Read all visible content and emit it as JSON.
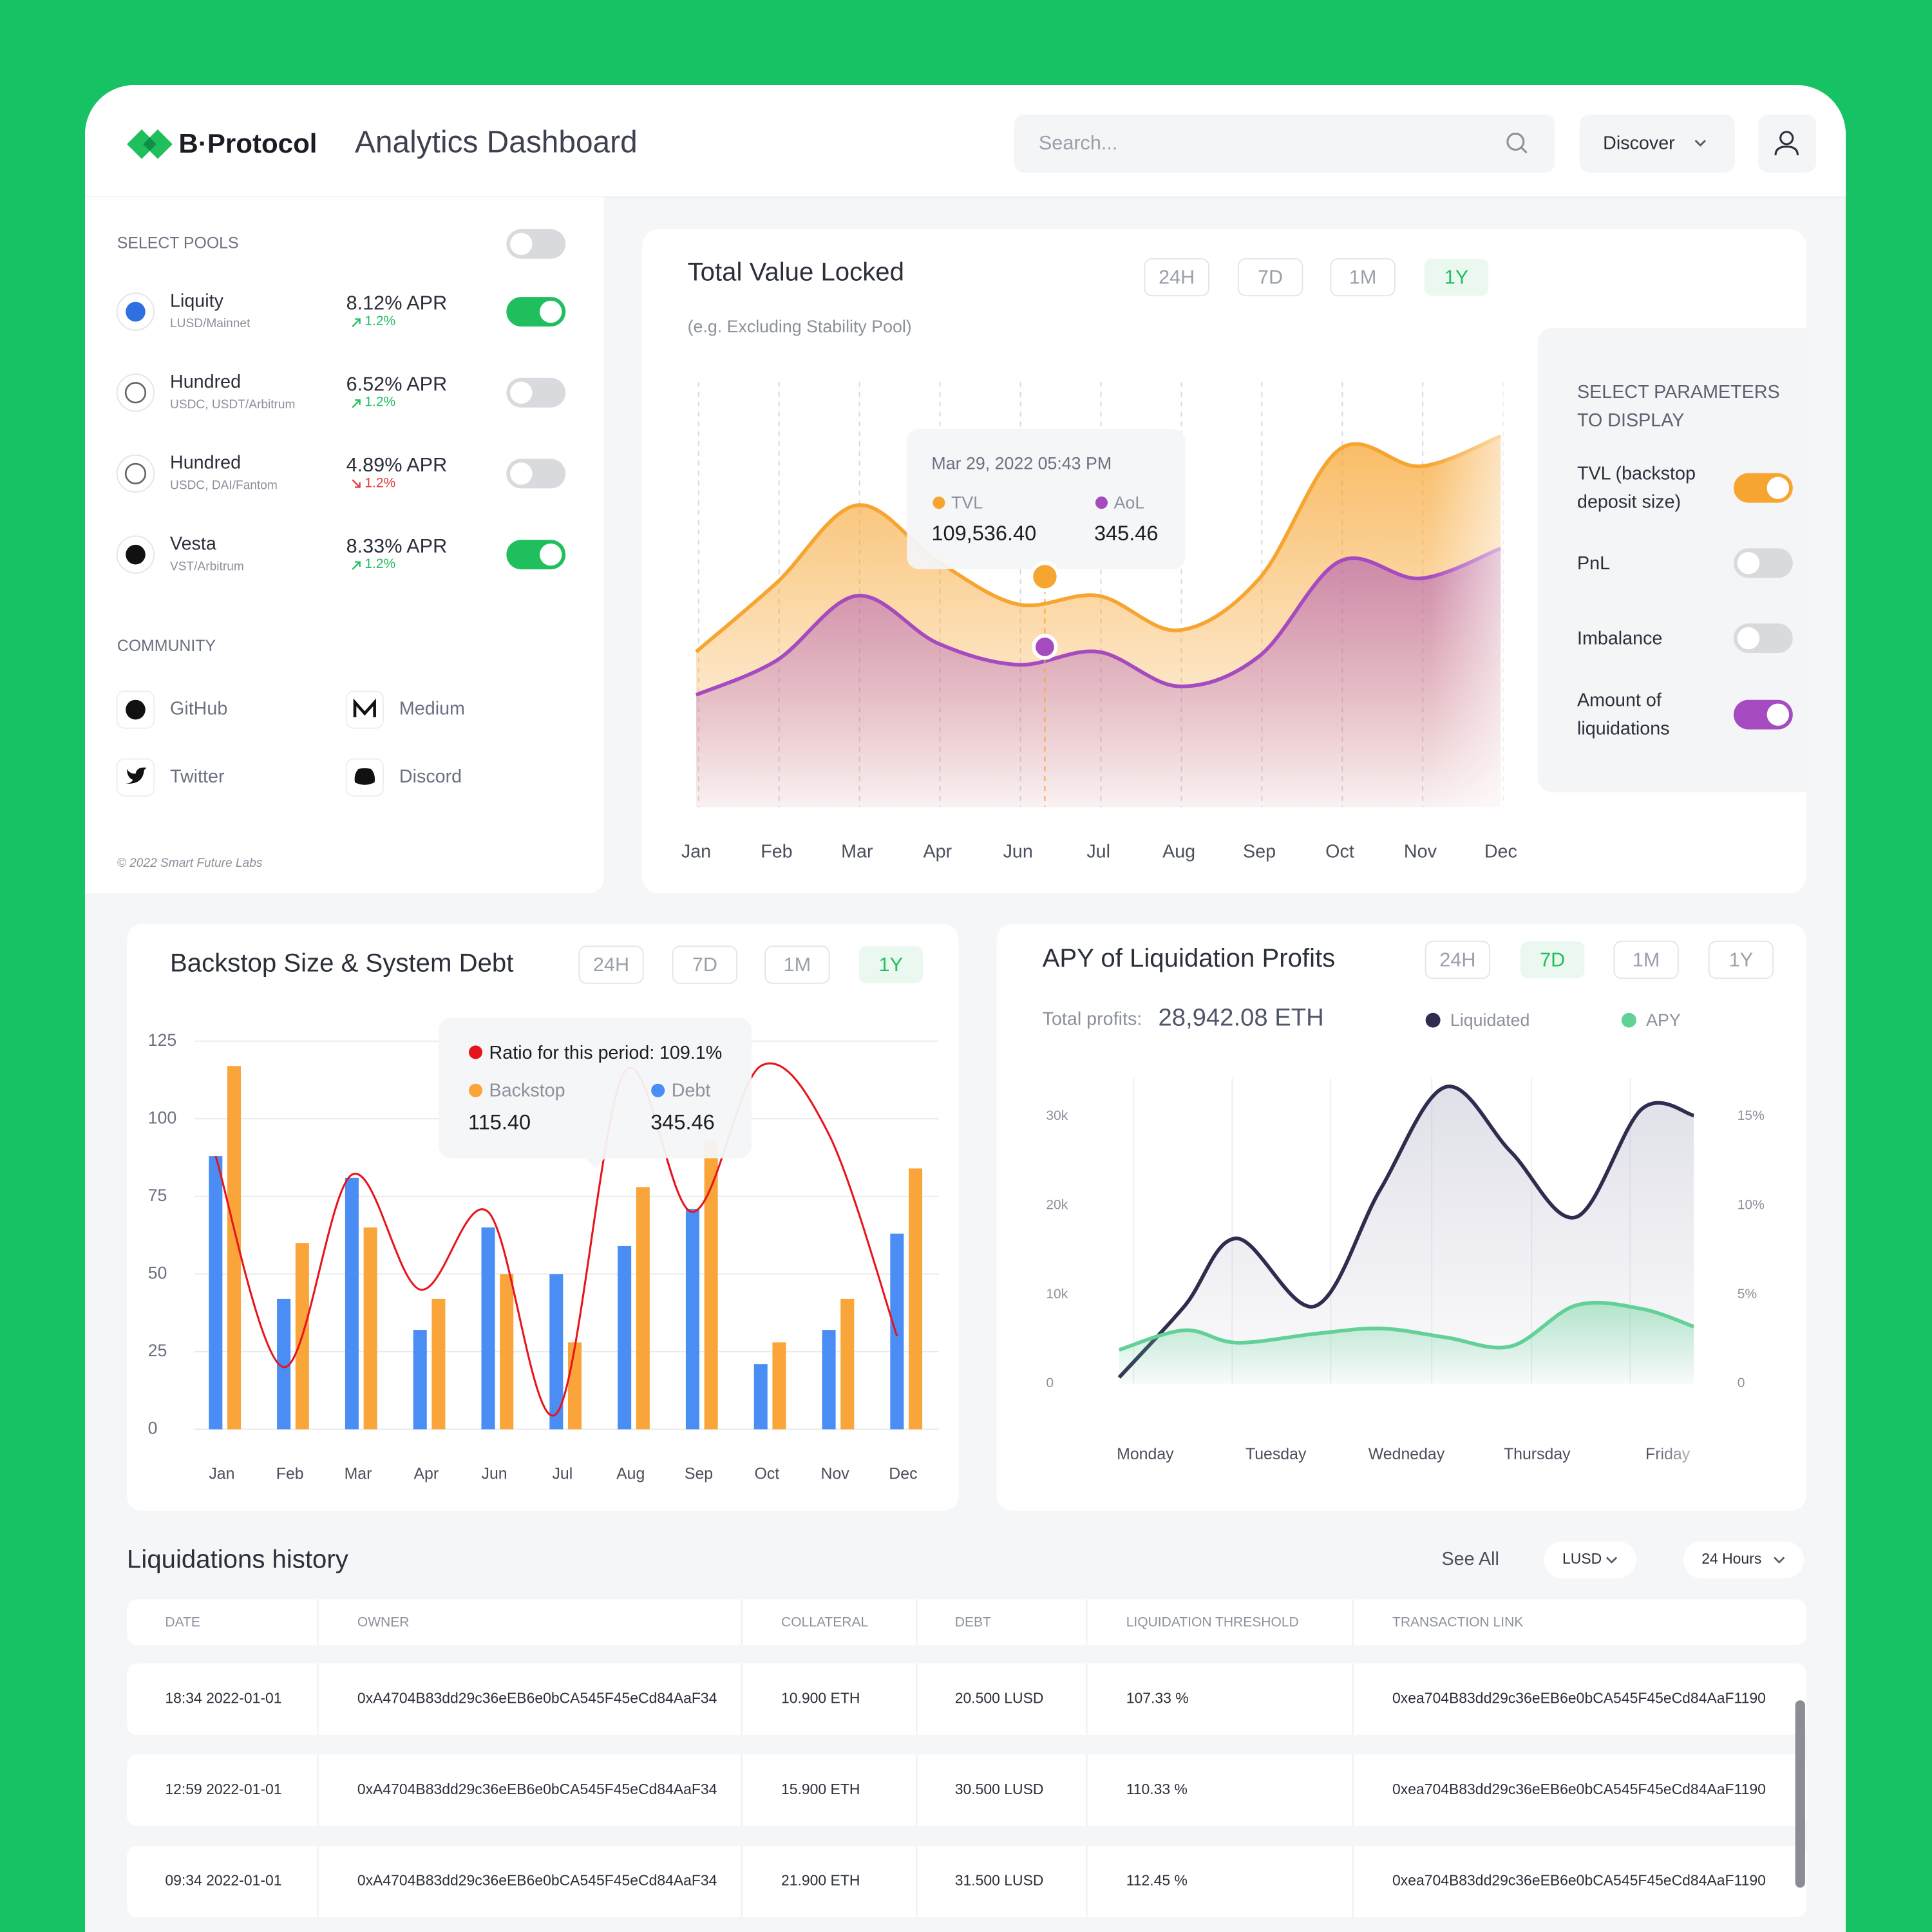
{
  "header": {
    "brand": "B·Protocol",
    "title": "Analytics Dashboard",
    "search_placeholder": "Search...",
    "menu": "Discover"
  },
  "sidebar": {
    "pools_heading": "SELECT POOLS",
    "all_enabled": false,
    "pools": [
      {
        "name": "Liquity",
        "network": "LUSD/Mainnet",
        "apr": "8.12% APR",
        "change": "1.2%",
        "trend": "up",
        "enabled": true
      },
      {
        "name": "Hundred",
        "network": "USDC, USDT/Arbitrum",
        "apr": "6.52% APR",
        "change": "1.2%",
        "trend": "up",
        "enabled": false
      },
      {
        "name": "Hundred",
        "network": "USDC, DAI/Fantom",
        "apr": "4.89% APR",
        "change": "1.2%",
        "trend": "down",
        "enabled": false
      },
      {
        "name": "Vesta",
        "network": "VST/Arbitrum",
        "apr": "8.33% APR",
        "change": "1.2%",
        "trend": "up",
        "enabled": true
      }
    ],
    "community_heading": "COMMUNITY",
    "links": [
      "GitHub",
      "Medium",
      "Twitter",
      "Discord"
    ],
    "footer": "© 2022 Smart Future Labs"
  },
  "tvl_chart": {
    "type": "area",
    "title": "Total Value Locked",
    "subtitle": "(e.g. Excluding Stability Pool)",
    "ranges": [
      "24H",
      "7D",
      "1M",
      "1Y"
    ],
    "active_range": 3,
    "categories": [
      "Jan",
      "Feb",
      "Mar",
      "Apr",
      "Jun",
      "Jul",
      "Aug",
      "Sep",
      "Oct",
      "Nov",
      "Dec"
    ],
    "series": [
      {
        "name": "TVL",
        "color": "#f7a531",
        "values": [
          36,
          52,
          70,
          57,
          47,
          49,
          41,
          53,
          83,
          79,
          86
        ]
      },
      {
        "name": "AoL",
        "color": "#a54bbf",
        "values": [
          26,
          34,
          49,
          38,
          33,
          36,
          28,
          35,
          57,
          53,
          60
        ]
      }
    ],
    "ylim": [
      0,
      100
    ],
    "tooltip": {
      "date": "Mar 29, 2022 05:43 PM",
      "values": [
        "109,536.40",
        "345.46"
      ]
    },
    "parameters": {
      "heading": "SELECT PARAMETERS TO DISPLAY",
      "items": [
        {
          "label": "TVL (backstop deposit size)",
          "enabled": true,
          "color": "#f7a531"
        },
        {
          "label": "PnL",
          "enabled": false,
          "color": "#d9dade"
        },
        {
          "label": "Imbalance",
          "enabled": false,
          "color": "#d9dade"
        },
        {
          "label": "Amount of liquidations",
          "enabled": true,
          "color": "#a54bbf"
        }
      ]
    }
  },
  "backstop_chart": {
    "type": "bar",
    "title": "Backstop Size & System Debt",
    "ranges": [
      "24H",
      "7D",
      "1M",
      "1Y"
    ],
    "active_range": 3,
    "categories": [
      "Jan",
      "Feb",
      "Mar",
      "Apr",
      "Jun",
      "Jul",
      "Aug",
      "Sep",
      "Oct",
      "Nov",
      "Dec"
    ],
    "series": [
      {
        "name": "Backstop",
        "color": "#f9a53a",
        "values": [
          117,
          60,
          65,
          42,
          50,
          28,
          78,
          93,
          28,
          42,
          84
        ]
      },
      {
        "name": "Debt",
        "color": "#4a8ef5",
        "values": [
          88,
          42,
          81,
          32,
          65,
          50,
          59,
          71,
          21,
          32,
          63
        ]
      }
    ],
    "ratio_line": {
      "color": "#e8141c",
      "values": [
        88,
        20,
        82,
        45,
        70,
        5,
        115,
        70,
        117,
        95,
        30
      ]
    },
    "ylim": [
      0,
      125
    ],
    "yticks": [
      0,
      25,
      50,
      75,
      100,
      125
    ],
    "grid": true,
    "tooltip": {
      "ratio_label": "Ratio for this period:",
      "ratio": "109.1%",
      "values": [
        "115.40",
        "345.46"
      ]
    }
  },
  "apy_chart": {
    "type": "line",
    "title": "APY of Liquidation Profits",
    "ranges": [
      "24H",
      "7D",
      "1M",
      "1Y"
    ],
    "active_range": 1,
    "total_label": "Total profits:",
    "total": "28,942.08 ETH",
    "x": [
      -0.2,
      0.3,
      0.7,
      1.3,
      1.8,
      2.3,
      2.8,
      3.3,
      3.8,
      4.2
    ],
    "xlim": [
      -0.25,
      4.25
    ],
    "xticks": [
      {
        "value": 0,
        "label": "Monday"
      },
      {
        "value": 1,
        "label": "Tuesday"
      },
      {
        "value": 2,
        "label": "Wedneday"
      },
      {
        "value": 3,
        "label": "Thursday"
      },
      {
        "value": 4,
        "label": "Friday"
      }
    ],
    "series": [
      {
        "name": "Liquidated",
        "color": "#2e2d4f",
        "values": [
          700,
          8700,
          16300,
          8700,
          21800,
          33300,
          26000,
          18700,
          30800,
          30100
        ]
      },
      {
        "name": "APY",
        "color": "#62d197",
        "axis": "y2",
        "values": [
          1.9,
          3.0,
          2.3,
          2.8,
          3.1,
          2.6,
          2.1,
          4.4,
          4.2,
          3.2
        ]
      }
    ],
    "ylim": [
      0,
      30000
    ],
    "yticks": [
      0,
      {
        "value": 10000,
        "label": "10k"
      },
      {
        "value": 20000,
        "label": "20k"
      },
      {
        "value": 30000,
        "label": "30k"
      }
    ],
    "y2lim": [
      0,
      15
    ],
    "y2ticks": [
      0,
      {
        "value": 5,
        "label": "5%"
      },
      {
        "value": 10,
        "label": "10%"
      },
      {
        "value": 15,
        "label": "15%"
      }
    ]
  },
  "table": {
    "title": "Liquidations history",
    "see_all": "See All",
    "filters": [
      "LUSD",
      "24 Hours"
    ],
    "columns": [
      "DATE",
      "OWNER",
      "COLLATERAL",
      "DEBT",
      "LIQUIDATION THRESHOLD",
      "TRANSACTION LINK"
    ],
    "rows": [
      [
        "18:34 2022-01-01",
        "0xA4704B83dd29c36eEB6e0bCA545F45eCd84AaF34",
        "10.900 ETH",
        "20.500 LUSD",
        "107.33 %",
        "0xea704B83dd29c36eEB6e0bCA545F45eCd84AaF1190"
      ],
      [
        "12:59 2022-01-01",
        "0xA4704B83dd29c36eEB6e0bCA545F45eCd84AaF34",
        "15.900 ETH",
        "30.500 LUSD",
        "110.33 %",
        "0xea704B83dd29c36eEB6e0bCA545F45eCd84AaF1190"
      ],
      [
        "09:34 2022-01-01",
        "0xA4704B83dd29c36eEB6e0bCA545F45eCd84AaF34",
        "21.900 ETH",
        "31.500 LUSD",
        "112.45 %",
        "0xea704B83dd29c36eEB6e0bCA545F45eCd84AaF1190"
      ]
    ]
  }
}
